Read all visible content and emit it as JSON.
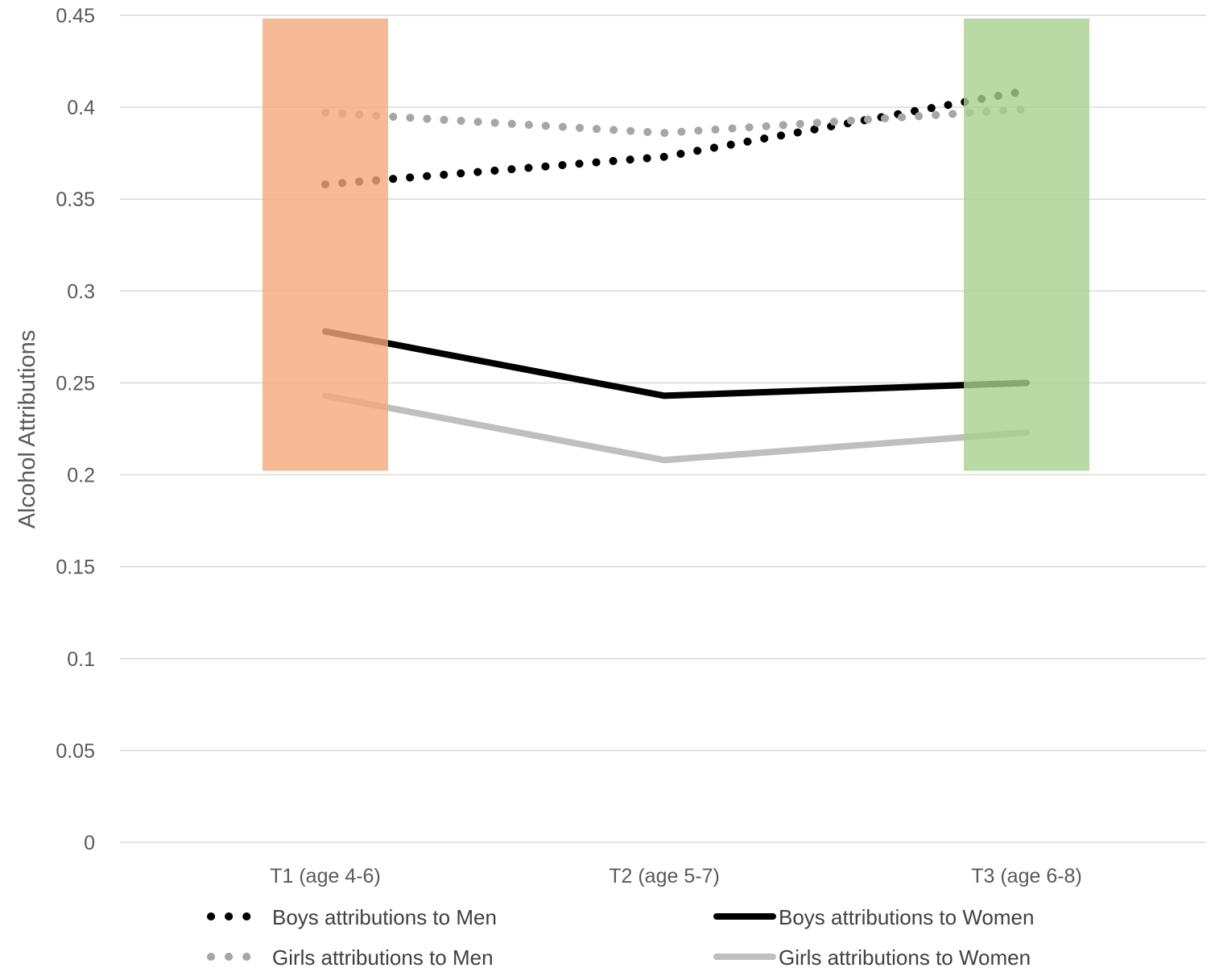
{
  "chart_data": {
    "type": "line",
    "title": "",
    "xlabel": "",
    "ylabel": "Alcohol Attributions",
    "categories": [
      "T1 (age 4-6)",
      "T2 (age 5-7)",
      "T3 (age 6-8)"
    ],
    "ylim": [
      0,
      0.45
    ],
    "yticks": [
      "0",
      "0.05",
      "0.1",
      "0.15",
      "0.2",
      "0.25",
      "0.3",
      "0.35",
      "0.4",
      "0.45"
    ],
    "grid": true,
    "legend_position": "bottom",
    "series": [
      {
        "name": "Boys attributions to Men",
        "values": [
          0.358,
          0.373,
          0.409
        ],
        "color": "#000000",
        "style": "dotted"
      },
      {
        "name": "Boys attributions to Women",
        "values": [
          0.278,
          0.243,
          0.25
        ],
        "color": "#000000",
        "style": "solid"
      },
      {
        "name": "Girls attributions to Men",
        "values": [
          0.397,
          0.386,
          0.399
        ],
        "color": "#a6a6a6",
        "style": "dotted"
      },
      {
        "name": "Girls attributions to Women",
        "values": [
          0.243,
          0.208,
          0.223
        ],
        "color": "#bfbfbf",
        "style": "solid"
      }
    ],
    "highlight_bands": [
      {
        "category": "T1 (age 4-6)",
        "y_range": [
          0.2,
          0.45
        ],
        "color": "#f4a97c"
      },
      {
        "category": "T3 (age 6-8)",
        "y_range": [
          0.2,
          0.45
        ],
        "color": "#a9d18e"
      }
    ]
  }
}
